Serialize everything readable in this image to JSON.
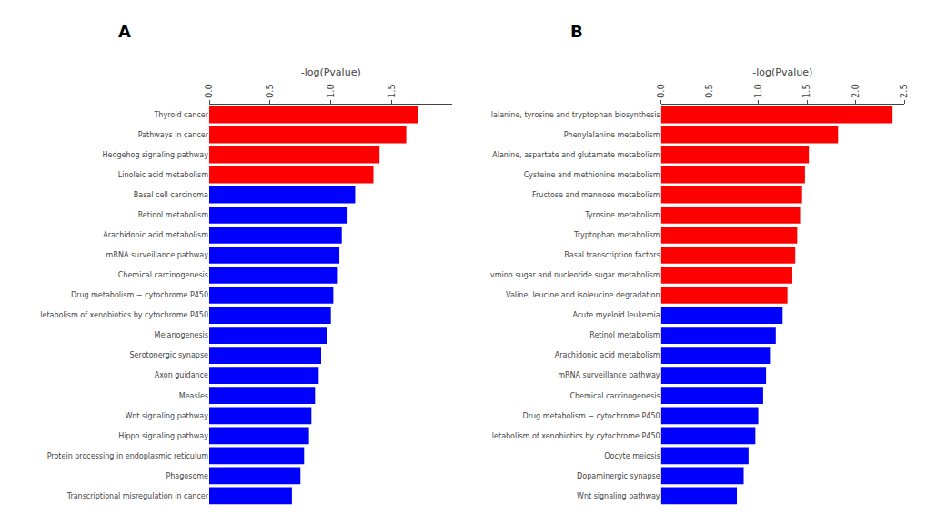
{
  "chart_data": [
    {
      "type": "bar",
      "orientation": "horizontal",
      "title": "A",
      "xlabel": "-log(Pvalue)",
      "xlim": [
        0,
        2.0
      ],
      "xticks": [
        {
          "value": 0.0,
          "label": "0.0"
        },
        0.5,
        {
          "value": 1.0,
          "label": "1.0"
        },
        1.5
      ],
      "grid": false,
      "categories": [
        "Thyroid cancer",
        "Pathways in cancer",
        "Hedgehog signaling pathway",
        "Linoleic acid metabolism",
        "Basal cell carcinoma",
        "Retinol metabolism",
        "Arachidonic acid metabolism",
        "mRNA surveillance pathway",
        "Chemical carcinogenesis",
        "Drug metabolism − cytochrome P450",
        "letabolism of xenobiotics by cytochrome P450",
        "Melanogenesis",
        "Serotonergic synapse",
        "Axon guidance",
        "Measles",
        "Wnt signaling pathway",
        "Hippo signaling pathway",
        "Protein processing in endoplasmic reticulum",
        "Phagosome",
        "Transcriptional misregulation in cancer"
      ],
      "values": [
        1.72,
        1.62,
        1.4,
        1.35,
        1.2,
        1.13,
        1.09,
        1.07,
        1.05,
        1.02,
        1.0,
        0.97,
        0.92,
        0.9,
        0.87,
        0.84,
        0.82,
        0.78,
        0.75,
        0.68
      ],
      "colors": [
        "#FF0000",
        "#FF0000",
        "#FF0000",
        "#FF0000",
        "#0000FF",
        "#0000FF",
        "#0000FF",
        "#0000FF",
        "#0000FF",
        "#0000FF",
        "#0000FF",
        "#0000FF",
        "#0000FF",
        "#0000FF",
        "#0000FF",
        "#0000FF",
        "#0000FF",
        "#0000FF",
        "#0000FF",
        "#0000FF"
      ]
    },
    {
      "type": "bar",
      "orientation": "horizontal",
      "title": "B",
      "xlabel": "-log(Pvalue)",
      "xlim": [
        0,
        2.5
      ],
      "xticks": [
        {
          "value": 0.0,
          "label": "0.0"
        },
        0.5,
        {
          "value": 1.0,
          "label": "1.0"
        },
        1.5,
        {
          "value": 2.0,
          "label": "2.0"
        },
        2.5
      ],
      "grid": false,
      "categories": [
        "lalanine, tyrosine and tryptophan biosynthesis",
        "Phenylalanine metabolism",
        "Alanine, aspartate and glutamate metabolism",
        "Cysteine and methionine metabolism",
        "Fructose and mannose metabolism",
        "Tyrosine metabolism",
        "Tryptophan metabolism",
        "Basal transcription factors",
        "vmino sugar and nucleotide sugar metabolism",
        "Valine, leucine and isoleucine degradation",
        "Acute myeloid leukemia",
        "Retinol metabolism",
        "Arachidonic acid metabolism",
        "mRNA surveillance pathway",
        "Chemical carcinogenesis",
        "Drug metabolism − cytochrome P450",
        "letabolism of xenobiotics by cytochrome P450",
        "Oocyte meiosis",
        "Dopaminergic synapse",
        "Wnt signaling pathway"
      ],
      "values": [
        2.38,
        1.82,
        1.52,
        1.48,
        1.45,
        1.43,
        1.4,
        1.38,
        1.35,
        1.3,
        1.25,
        1.18,
        1.12,
        1.08,
        1.05,
        1.0,
        0.97,
        0.9,
        0.85,
        0.78
      ],
      "colors": [
        "#FF0000",
        "#FF0000",
        "#FF0000",
        "#FF0000",
        "#FF0000",
        "#FF0000",
        "#FF0000",
        "#FF0000",
        "#FF0000",
        "#FF0000",
        "#0000FF",
        "#0000FF",
        "#0000FF",
        "#0000FF",
        "#0000FF",
        "#0000FF",
        "#0000FF",
        "#0000FF",
        "#0000FF",
        "#0000FF"
      ]
    }
  ]
}
